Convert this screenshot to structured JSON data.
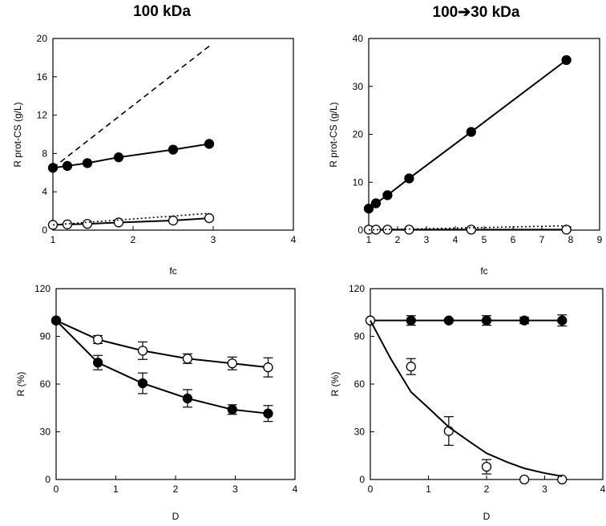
{
  "titles": {
    "left": "100 kDa",
    "right": "100➔30 kDa"
  },
  "chart_data": [
    {
      "id": "top-left",
      "type": "scatter",
      "xlabel": "fc",
      "ylabel": "R prot-CS (g/L)",
      "xlim": [
        1,
        4
      ],
      "ylim": [
        0,
        20
      ],
      "xticks": [
        1,
        2,
        3,
        4
      ],
      "yticks": [
        0,
        4,
        8,
        12,
        16,
        20
      ],
      "series": [
        {
          "marker": "filled",
          "line": "solid",
          "x": [
            1.0,
            1.18,
            1.43,
            1.82,
            2.5,
            2.95
          ],
          "y": [
            6.5,
            6.7,
            7.0,
            7.6,
            8.4,
            9.0
          ]
        },
        {
          "marker": "open",
          "line": "solid",
          "x": [
            1.0,
            1.18,
            1.43,
            1.82,
            2.5,
            2.95
          ],
          "y": [
            0.55,
            0.6,
            0.65,
            0.8,
            1.0,
            1.25
          ]
        },
        {
          "marker": "none",
          "line": "dashed",
          "x": [
            1.0,
            2.95
          ],
          "y": [
            6.5,
            19.2
          ]
        },
        {
          "marker": "none",
          "line": "dotted",
          "x": [
            1.0,
            2.95
          ],
          "y": [
            0.55,
            1.75
          ]
        }
      ]
    },
    {
      "id": "top-right",
      "type": "scatter",
      "xlabel": "fc",
      "ylabel": "R prot-CS (g/L)",
      "xlim": [
        1,
        9
      ],
      "ylim": [
        0,
        40
      ],
      "xticks": [
        1,
        2,
        3,
        4,
        5,
        6,
        7,
        8,
        9
      ],
      "yticks": [
        0,
        10,
        20,
        30,
        40
      ],
      "series": [
        {
          "marker": "filled",
          "line": "solid",
          "x": [
            1.0,
            1.25,
            1.65,
            2.4,
            4.55,
            7.85
          ],
          "y": [
            4.5,
            5.6,
            7.3,
            10.8,
            20.5,
            35.5
          ]
        },
        {
          "marker": "open",
          "line": "solid",
          "x": [
            1.0,
            1.25,
            1.65,
            2.4,
            4.55,
            7.85
          ],
          "y": [
            0.1,
            0.1,
            0.1,
            0.1,
            0.1,
            0.1
          ]
        },
        {
          "marker": "none",
          "line": "dotted",
          "x": [
            1.0,
            7.85
          ],
          "y": [
            0.05,
            0.9
          ]
        }
      ]
    },
    {
      "id": "bottom-left",
      "type": "scatter",
      "xlabel": "D",
      "ylabel": "R (%)",
      "xlim": [
        0,
        4
      ],
      "ylim": [
        0,
        120
      ],
      "xticks": [
        0,
        1,
        2,
        3,
        4
      ],
      "yticks": [
        0,
        30,
        60,
        90,
        120
      ],
      "series": [
        {
          "marker": "open",
          "line": "solid",
          "x": [
            0,
            0.7,
            1.45,
            2.2,
            2.95,
            3.55
          ],
          "y": [
            100,
            88,
            81,
            76,
            73,
            70.5
          ],
          "err": [
            0,
            2.5,
            5.5,
            3,
            4,
            6
          ]
        },
        {
          "marker": "filled",
          "line": "solid",
          "x": [
            0,
            0.7,
            1.45,
            2.2,
            2.95,
            3.55
          ],
          "y": [
            100,
            73.5,
            60.5,
            51,
            44,
            41.5
          ],
          "err": [
            0,
            4.5,
            6.5,
            5.5,
            3,
            5
          ]
        }
      ]
    },
    {
      "id": "bottom-right",
      "type": "scatter",
      "xlabel": "D",
      "ylabel": "R (%)",
      "xlim": [
        0,
        4
      ],
      "ylim": [
        0,
        120
      ],
      "xticks": [
        0,
        1,
        2,
        3,
        4
      ],
      "yticks": [
        0,
        30,
        60,
        90,
        120
      ],
      "series": [
        {
          "marker": "filled",
          "line": "solid",
          "x": [
            0,
            0.7,
            1.35,
            2.0,
            2.65,
            3.3
          ],
          "y": [
            100,
            100,
            100,
            100,
            100,
            100
          ],
          "err": [
            0,
            3,
            1,
            3,
            2,
            3.5
          ]
        },
        {
          "marker": "open",
          "line": "none",
          "x": [
            0,
            0.7,
            1.35,
            2.0,
            2.65,
            3.3
          ],
          "y": [
            100,
            71,
            30.5,
            8,
            0,
            0
          ],
          "err": [
            0,
            5,
            9,
            4.5,
            0,
            0
          ]
        },
        {
          "marker": "none",
          "line": "solid",
          "x": [
            0,
            0.35,
            0.7,
            1.0,
            1.35,
            1.7,
            2.0,
            2.35,
            2.65,
            3.0,
            3.3
          ],
          "y": [
            100,
            76,
            55,
            45,
            33,
            24,
            16.5,
            11,
            7,
            4,
            2
          ]
        }
      ]
    }
  ]
}
